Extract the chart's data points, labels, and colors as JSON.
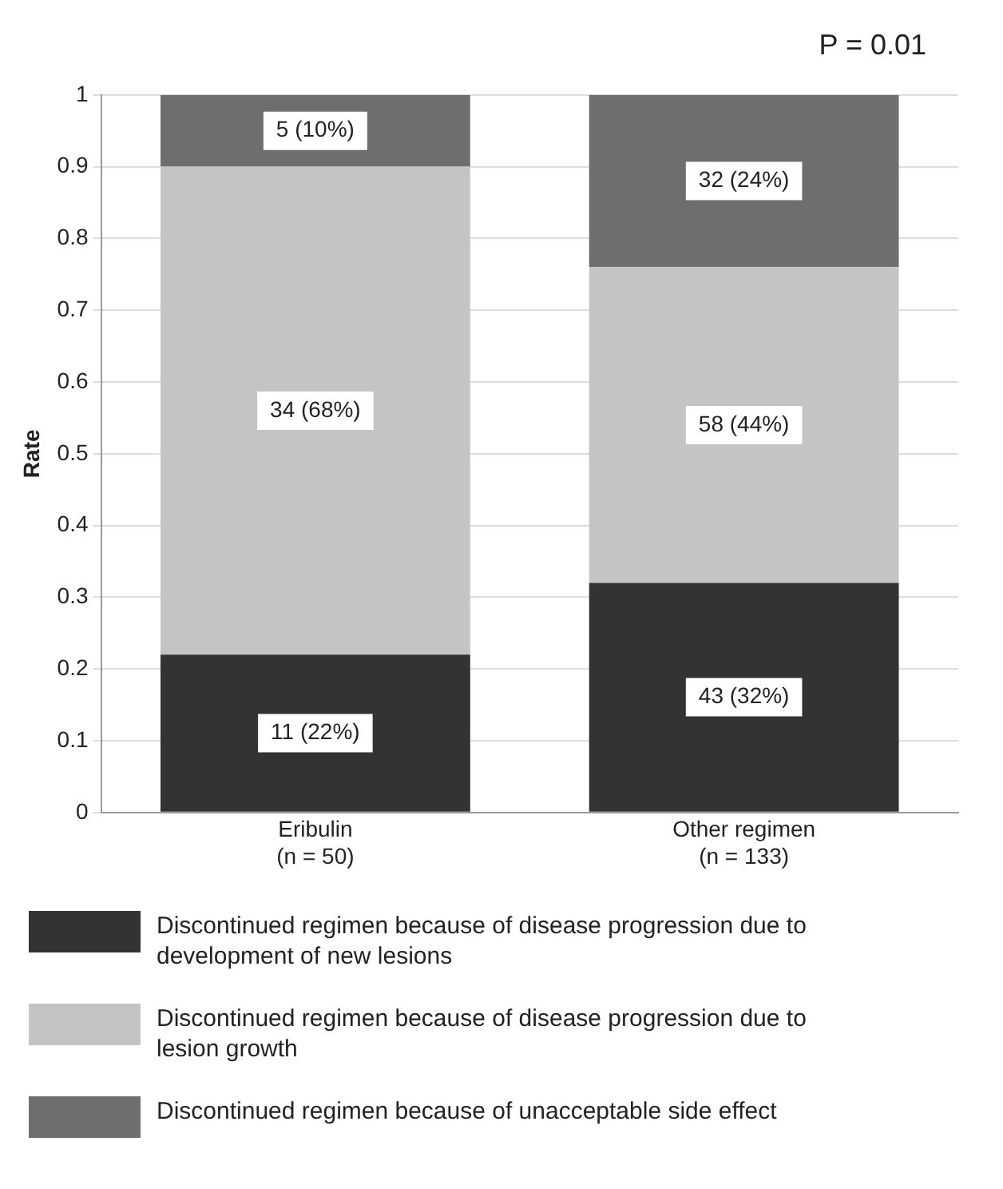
{
  "chart_data": {
    "type": "bar",
    "stacked": true,
    "ylabel": "Rate",
    "categories": [
      "Eribulin\n(n = 50)",
      "Other regimen\n(n = 133)"
    ],
    "series": [
      {
        "name": "Discontinued regimen because of disease progression due to development of new lesions",
        "color": "#333333",
        "values": [
          0.22,
          0.32
        ],
        "value_labels": [
          "11 (22%)",
          "43 (32%)"
        ]
      },
      {
        "name": "Discontinued regimen because of disease progression due to lesion growth",
        "color": "#c4c4c4",
        "values": [
          0.68,
          0.44
        ],
        "value_labels": [
          "34 (68%)",
          "58 (44%)"
        ]
      },
      {
        "name": "Discontinued regimen because of unacceptable side effect",
        "color": "#6e6e6e",
        "values": [
          0.1,
          0.24
        ],
        "value_labels": [
          "5 (10%)",
          "32 (24%)"
        ]
      }
    ],
    "ylim": [
      0,
      1
    ],
    "yticks": [
      0,
      0.1,
      0.2,
      0.3,
      0.4,
      0.5,
      0.6,
      0.7,
      0.8,
      0.9,
      1
    ],
    "grid": "y",
    "legend": "bottom",
    "annotations": [
      "P = 0.01"
    ]
  }
}
